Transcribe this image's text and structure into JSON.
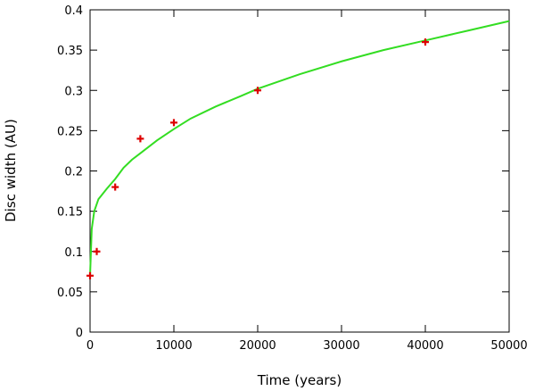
{
  "chart_data": {
    "type": "scatter",
    "title": "",
    "xlabel": "Time (years)",
    "ylabel": "Disc width (AU)",
    "xlim": [
      0,
      50000
    ],
    "ylim": [
      0,
      0.4
    ],
    "xticks": [
      0,
      10000,
      20000,
      30000,
      40000,
      50000
    ],
    "xtick_labels": [
      "0",
      "10000",
      "20000",
      "30000",
      "40000",
      "50000"
    ],
    "yticks": [
      0,
      0.05,
      0.1,
      0.15,
      0.2,
      0.25,
      0.3,
      0.35,
      0.4
    ],
    "ytick_labels": [
      "0",
      "0.05",
      "0.1",
      "0.15",
      "0.2",
      "0.25",
      "0.3",
      "0.35",
      "0.4"
    ],
    "grid": false,
    "legend": "none",
    "series": [
      {
        "kind": "points",
        "marker": "plus",
        "color": "#dd0000",
        "x": [
          0,
          800,
          3000,
          6000,
          10000,
          20000,
          40000
        ],
        "y": [
          0.07,
          0.1,
          0.18,
          0.24,
          0.26,
          0.3,
          0.36
        ]
      },
      {
        "kind": "line",
        "color": "#33dd22",
        "x": [
          0,
          200,
          500,
          1000,
          2000,
          3000,
          4000,
          5000,
          6000,
          8000,
          10000,
          12000,
          15000,
          18000,
          20000,
          25000,
          30000,
          35000,
          40000,
          45000,
          50000
        ],
        "y": [
          0.07,
          0.128,
          0.15,
          0.165,
          0.178,
          0.19,
          0.204,
          0.214,
          0.222,
          0.238,
          0.252,
          0.265,
          0.28,
          0.293,
          0.302,
          0.32,
          0.336,
          0.35,
          0.362,
          0.374,
          0.386
        ]
      }
    ]
  }
}
